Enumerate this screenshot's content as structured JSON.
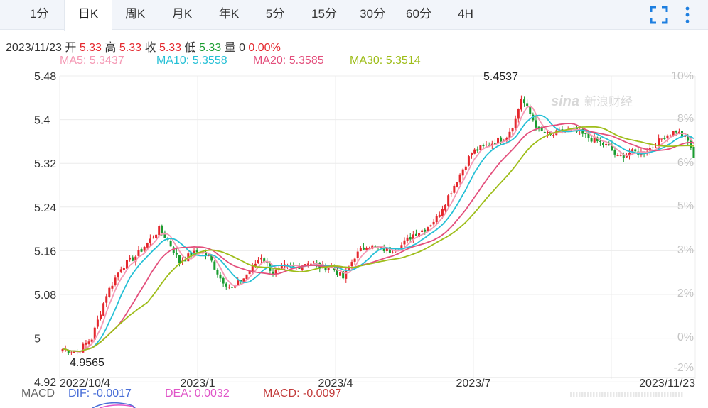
{
  "tabs": [
    {
      "label": "1分",
      "active": false
    },
    {
      "label": "日K",
      "active": true
    },
    {
      "label": "周K",
      "active": false
    },
    {
      "label": "月K",
      "active": false
    },
    {
      "label": "年K",
      "active": false
    },
    {
      "label": "5分",
      "active": false
    },
    {
      "label": "15分",
      "active": false
    },
    {
      "label": "30分",
      "active": false
    },
    {
      "label": "60分",
      "active": false
    },
    {
      "label": "4H",
      "active": false
    }
  ],
  "toolbar": {
    "fullscreen_icon": "fullscreen-icon",
    "more_icon": "more-vertical-icon"
  },
  "info": {
    "date": "2023/11/23",
    "open_label": "开",
    "open": "5.33",
    "high_label": "高",
    "high": "5.33",
    "close_label": "收",
    "close": "5.33",
    "low_label": "低",
    "low": "5.33",
    "volume_label": "量",
    "volume": "0",
    "change": "0.00%"
  },
  "ma": {
    "ma5": "MA5: 5.3437",
    "ma10": "MA10: 5.3558",
    "ma20": "MA20: 5.3585",
    "ma30": "MA30: 5.3514"
  },
  "macd": {
    "label": "MACD",
    "dif": "DIF: -0.0017",
    "dea": "DEA: 0.0032",
    "macd": "MACD: -0.0097"
  },
  "watermark": "新浪财经",
  "colors": {
    "up": "#e4272d",
    "down": "#1a9c30",
    "ma5": "#f598b4",
    "ma10": "#26c0d6",
    "ma20": "#e34f7c",
    "ma30": "#9ebd19",
    "dif": "#4a6fd8",
    "dea": "#e055c8",
    "macd": "#c23a3a"
  },
  "chart_data": {
    "type": "candlestick",
    "y_ticks": [
      "5.48",
      "5.4",
      "5.32",
      "5.24",
      "5.16",
      "5.08",
      "5",
      "4.92"
    ],
    "y_range": [
      4.92,
      5.48
    ],
    "right_ticks": [
      "10%",
      "8%",
      "6%",
      "5%",
      "3%",
      "2%",
      "0%",
      "-2%"
    ],
    "x_ticks": [
      "2022/10/4",
      "2023/1",
      "2023/4",
      "2023/7",
      "2023/11/23"
    ],
    "annotations": {
      "max_label": "5.4537",
      "min_label": "4.9565"
    },
    "keypoints": [
      [
        0,
        4.98
      ],
      [
        5,
        4.975
      ],
      [
        10,
        5.0
      ],
      [
        15,
        5.08
      ],
      [
        20,
        5.13
      ],
      [
        25,
        5.15
      ],
      [
        30,
        5.18
      ],
      [
        33,
        5.2
      ],
      [
        36,
        5.18
      ],
      [
        40,
        5.14
      ],
      [
        43,
        5.15
      ],
      [
        47,
        5.16
      ],
      [
        50,
        5.15
      ],
      [
        54,
        5.11
      ],
      [
        58,
        5.09
      ],
      [
        62,
        5.11
      ],
      [
        65,
        5.13
      ],
      [
        68,
        5.15
      ],
      [
        72,
        5.12
      ],
      [
        76,
        5.13
      ],
      [
        80,
        5.13
      ],
      [
        84,
        5.14
      ],
      [
        88,
        5.13
      ],
      [
        92,
        5.13
      ],
      [
        96,
        5.11
      ],
      [
        100,
        5.15
      ],
      [
        104,
        5.17
      ],
      [
        108,
        5.165
      ],
      [
        112,
        5.16
      ],
      [
        116,
        5.17
      ],
      [
        120,
        5.19
      ],
      [
        124,
        5.2
      ],
      [
        128,
        5.22
      ],
      [
        132,
        5.26
      ],
      [
        136,
        5.3
      ],
      [
        140,
        5.34
      ],
      [
        144,
        5.35
      ],
      [
        148,
        5.36
      ],
      [
        152,
        5.37
      ],
      [
        155,
        5.4
      ],
      [
        157,
        5.44
      ],
      [
        159,
        5.42
      ],
      [
        163,
        5.38
      ],
      [
        167,
        5.37
      ],
      [
        171,
        5.38
      ],
      [
        175,
        5.38
      ],
      [
        179,
        5.37
      ],
      [
        183,
        5.36
      ],
      [
        187,
        5.35
      ],
      [
        190,
        5.33
      ],
      [
        194,
        5.34
      ],
      [
        198,
        5.34
      ],
      [
        202,
        5.35
      ],
      [
        206,
        5.37
      ],
      [
        210,
        5.38
      ],
      [
        214,
        5.36
      ],
      [
        216,
        5.34
      ]
    ],
    "last_close": 5.33
  }
}
